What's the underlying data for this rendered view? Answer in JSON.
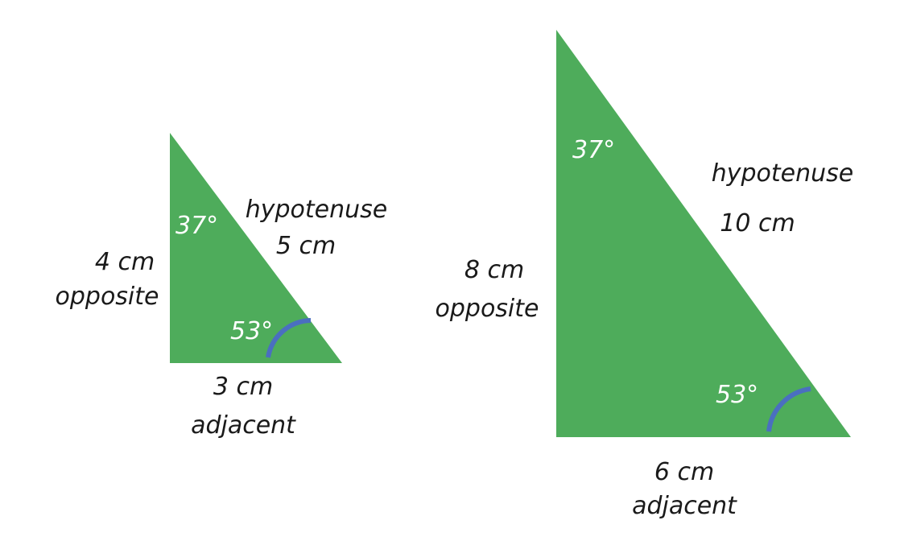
{
  "colors": {
    "triangle_fill": "#4eac5b",
    "angle_arc": "#4a6fc0",
    "label_text": "#1a1a1a",
    "angle_text": "#ffffff"
  },
  "small_triangle": {
    "top_angle": "37°",
    "bottom_angle": "53°",
    "opposite_length": "4 cm",
    "opposite_name": "opposite",
    "hypotenuse_name": "hypotenuse",
    "hypotenuse_length": "5 cm",
    "adjacent_length": "3 cm",
    "adjacent_name": "adjacent"
  },
  "large_triangle": {
    "top_angle": "37°",
    "bottom_angle": "53°",
    "opposite_length": "8 cm",
    "opposite_name": "opposite",
    "hypotenuse_name": "hypotenuse",
    "hypotenuse_length": "10 cm",
    "adjacent_length": "6 cm",
    "adjacent_name": "adjacent"
  }
}
